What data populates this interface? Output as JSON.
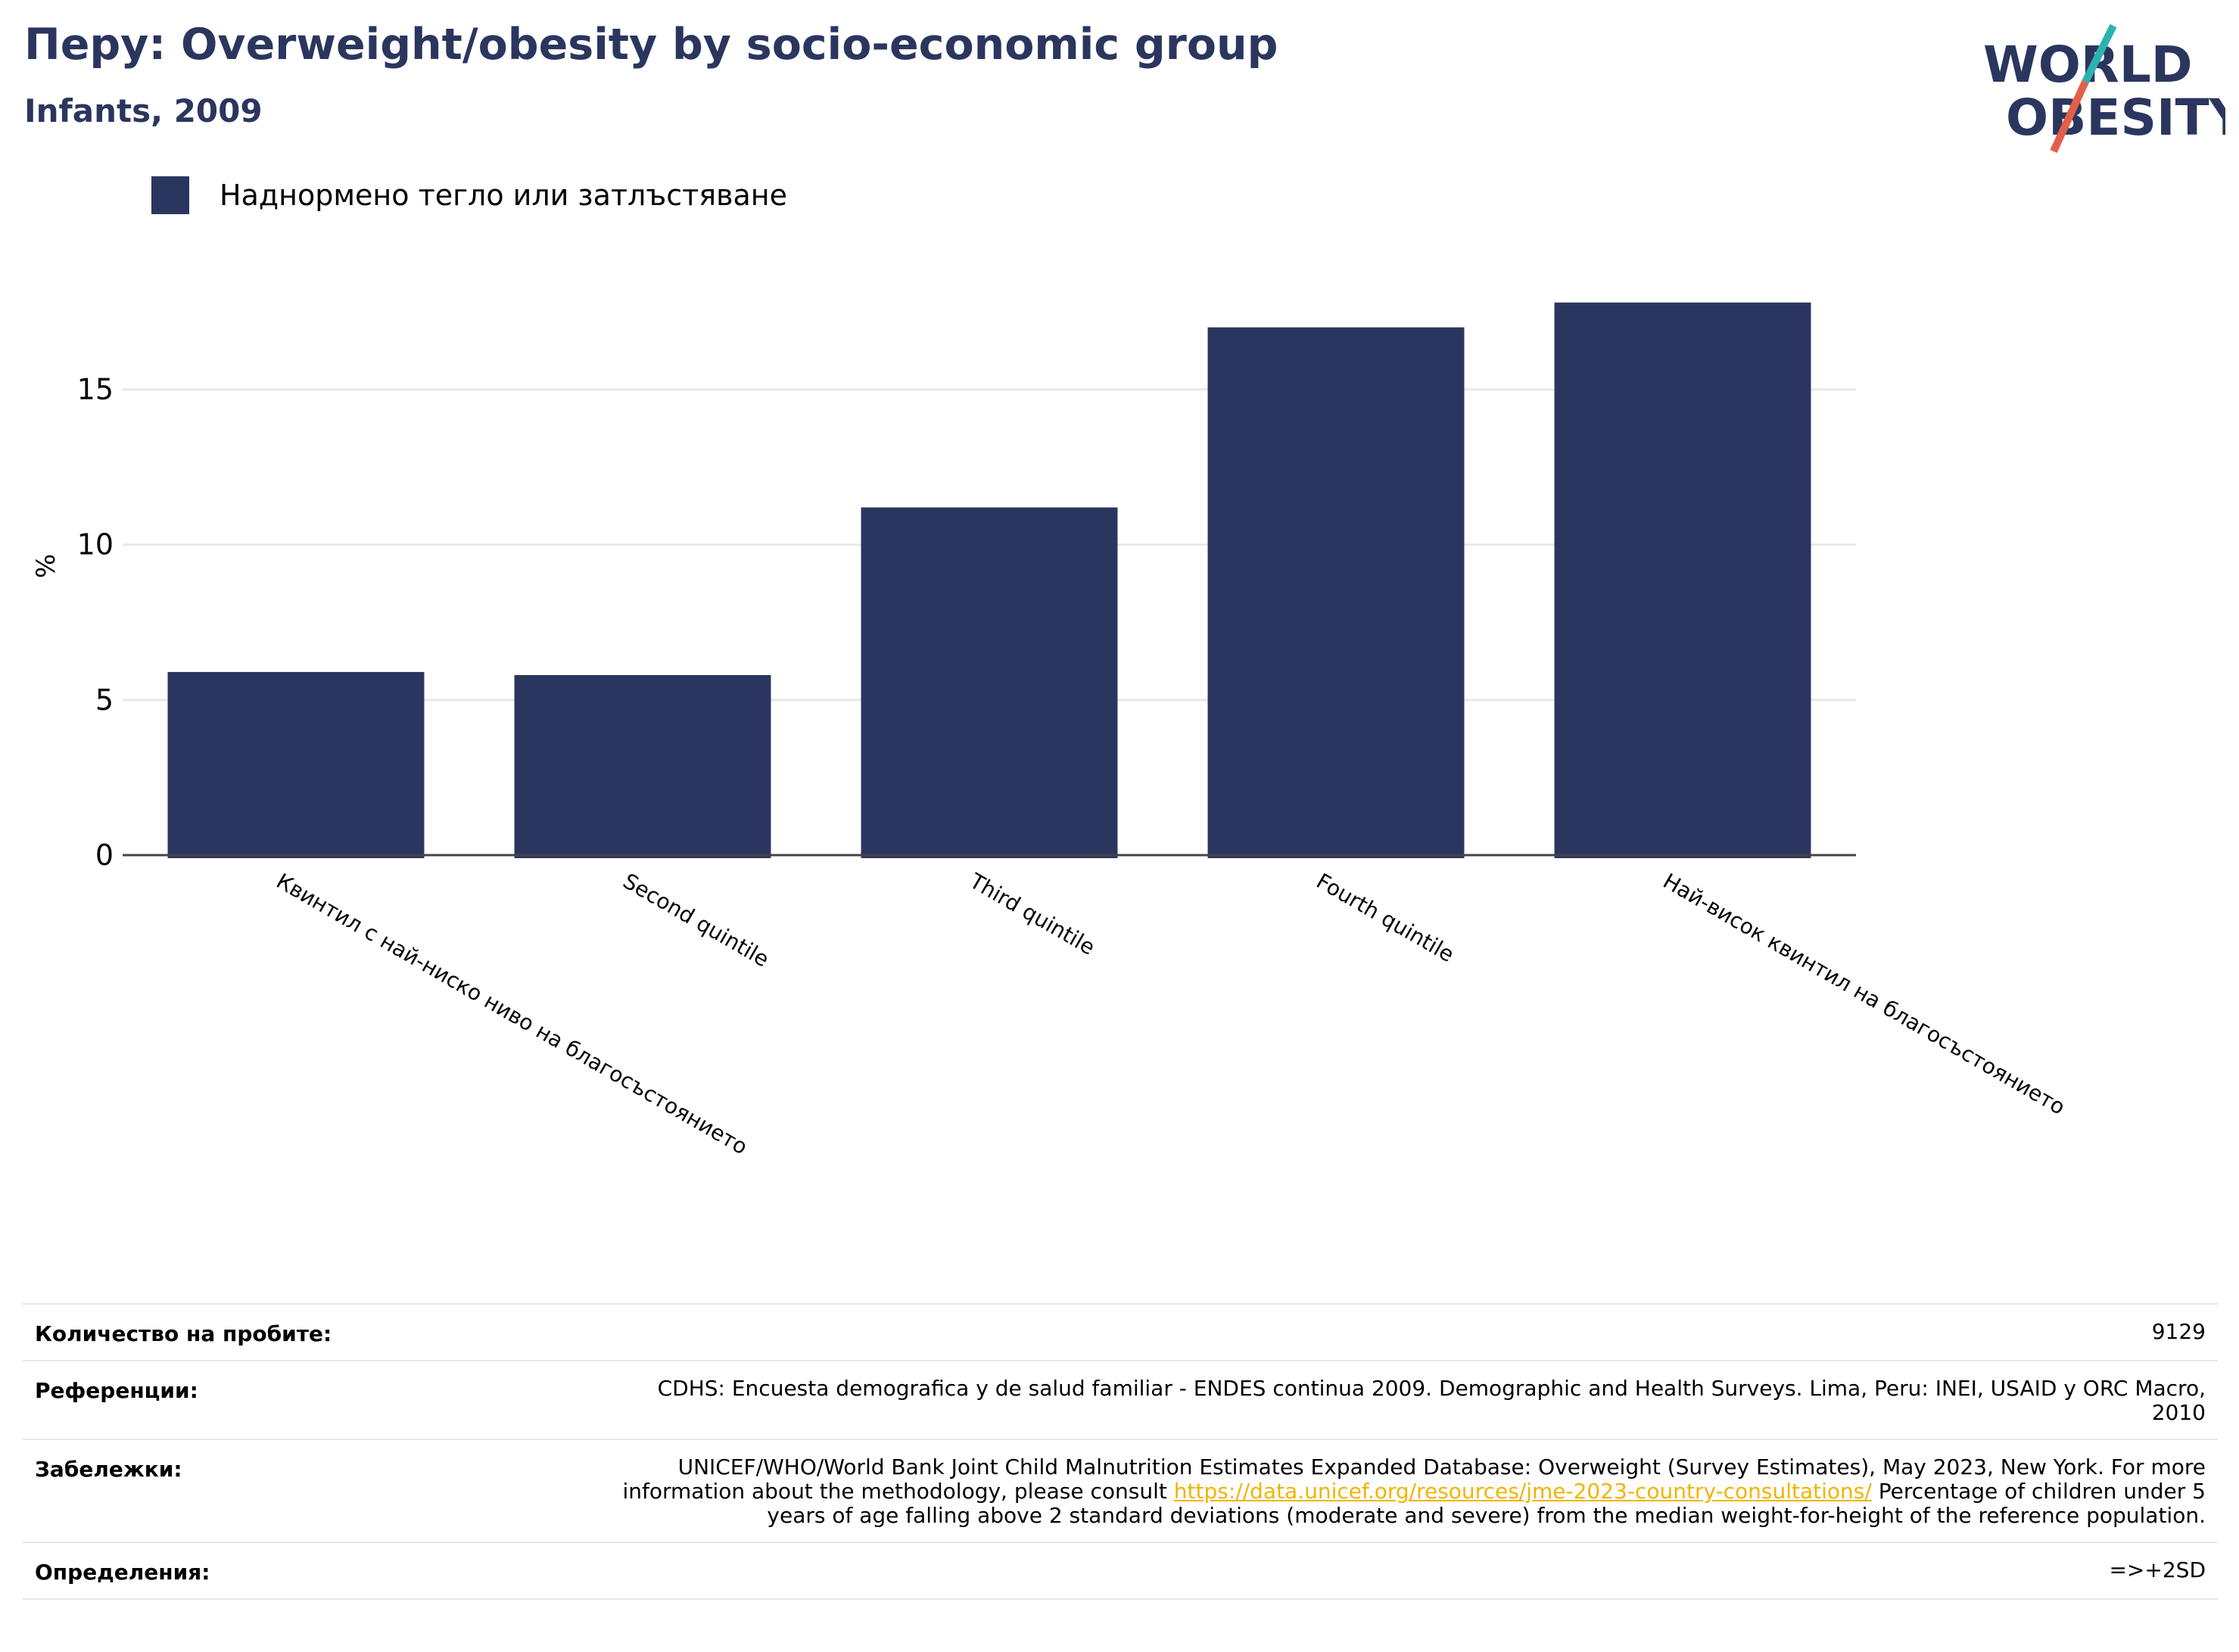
{
  "header": {
    "title": "Перу: Overweight/obesity by socio-economic group",
    "subtitle": "Infants, 2009"
  },
  "logo": {
    "line1": "WORLD",
    "line2": "OBESITY",
    "colors": {
      "text": "#2b365f",
      "accent_teal": "#2bb3b1",
      "accent_red": "#e2604a"
    }
  },
  "legend": {
    "label": "Наднормено тегло или затлъстяване",
    "color": "#2b365f"
  },
  "chart_data": {
    "type": "bar",
    "categories": [
      "Квинтил с най-ниско ниво на благосъстоянието",
      "Second quintile",
      "Third quintile",
      "Fourth quintile",
      "Най-висок квинтил на благосъстоянието"
    ],
    "series": [
      {
        "name": "Наднормено тегло или затлъстяване",
        "values": [
          5.9,
          5.8,
          11.2,
          17.0,
          17.8
        ],
        "color": "#2b365f"
      }
    ],
    "ylabel": "%",
    "xlabel": "",
    "ylim": [
      0,
      19.5
    ],
    "yticks": [
      0,
      5,
      10,
      15
    ],
    "grid": true,
    "legend_position": "top-left"
  },
  "meta": {
    "sample_size": {
      "label": "Количество на пробите:",
      "value": "9129"
    },
    "references": {
      "label": "Референции:",
      "value": "CDHS: Encuesta demografica y de salud familiar - ENDES continua 2009. Demographic and Health Surveys. Lima, Peru: INEI, USAID y ORC Macro, 2010"
    },
    "notes": {
      "label": "Забележки:",
      "text_before": "UNICEF/WHO/World Bank Joint Child Malnutrition Estimates Expanded Database: Overweight (Survey Estimates), May 2023, New York. For more information about the methodology, please consult ",
      "link": "https://data.unicef.org/resources/jme-2023-country-consultations/",
      "text_after": " Percentage of children under 5 years of age falling above 2 standard deviations (moderate and severe) from the median weight-for-height of the reference population."
    },
    "definitions": {
      "label": "Определения:",
      "value": "=>+2SD"
    }
  }
}
